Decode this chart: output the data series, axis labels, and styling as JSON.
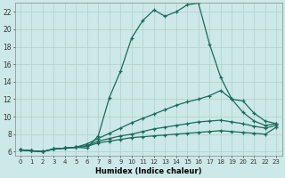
{
  "xlabel": "Humidex (Indice chaleur)",
  "bg_color": "#cce8e8",
  "grid_color": "#b0d0cc",
  "line_color": "#1a6b5a",
  "xlim": [
    -0.5,
    23.5
  ],
  "ylim": [
    5.5,
    23.0
  ],
  "xticks": [
    0,
    1,
    2,
    3,
    4,
    5,
    6,
    7,
    8,
    9,
    10,
    11,
    12,
    13,
    14,
    15,
    16,
    17,
    18,
    19,
    20,
    21,
    22,
    23
  ],
  "yticks": [
    6,
    8,
    10,
    12,
    14,
    16,
    18,
    20,
    22
  ],
  "line1_x": [
    0,
    1,
    2,
    3,
    4,
    5,
    6,
    7,
    8,
    9,
    10,
    11,
    12,
    13,
    14,
    15,
    16,
    17,
    18,
    19,
    20,
    21,
    22,
    23
  ],
  "line1_y": [
    6.2,
    6.1,
    6.0,
    6.3,
    6.4,
    6.5,
    6.4,
    7.8,
    12.2,
    15.2,
    19.0,
    21.0,
    22.2,
    21.5,
    22.0,
    22.8,
    23.0,
    18.3,
    14.5,
    12.0,
    10.5,
    9.5,
    9.0,
    9.2
  ],
  "line2_x": [
    0,
    1,
    2,
    3,
    4,
    5,
    6,
    7,
    8,
    9,
    10,
    11,
    12,
    13,
    14,
    15,
    16,
    17,
    18,
    19,
    20,
    21,
    22,
    23
  ],
  "line2_y": [
    6.2,
    6.1,
    6.0,
    6.3,
    6.4,
    6.5,
    6.9,
    7.5,
    8.1,
    8.7,
    9.3,
    9.8,
    10.3,
    10.8,
    11.3,
    11.7,
    12.0,
    12.4,
    13.0,
    12.0,
    11.8,
    10.4,
    9.5,
    9.2
  ],
  "line3_x": [
    0,
    1,
    2,
    3,
    4,
    5,
    6,
    7,
    8,
    9,
    10,
    11,
    12,
    13,
    14,
    15,
    16,
    17,
    18,
    19,
    20,
    21,
    22,
    23
  ],
  "line3_y": [
    6.2,
    6.1,
    6.0,
    6.3,
    6.4,
    6.5,
    6.7,
    7.2,
    7.5,
    7.8,
    8.0,
    8.3,
    8.6,
    8.8,
    9.0,
    9.2,
    9.4,
    9.5,
    9.6,
    9.4,
    9.2,
    8.9,
    8.7,
    9.0
  ],
  "line4_x": [
    0,
    1,
    2,
    3,
    4,
    5,
    6,
    7,
    8,
    9,
    10,
    11,
    12,
    13,
    14,
    15,
    16,
    17,
    18,
    19,
    20,
    21,
    22,
    23
  ],
  "line4_y": [
    6.2,
    6.1,
    6.0,
    6.3,
    6.4,
    6.5,
    6.6,
    7.0,
    7.2,
    7.4,
    7.6,
    7.7,
    7.8,
    7.9,
    8.0,
    8.1,
    8.2,
    8.3,
    8.4,
    8.3,
    8.2,
    8.1,
    8.0,
    8.8
  ]
}
